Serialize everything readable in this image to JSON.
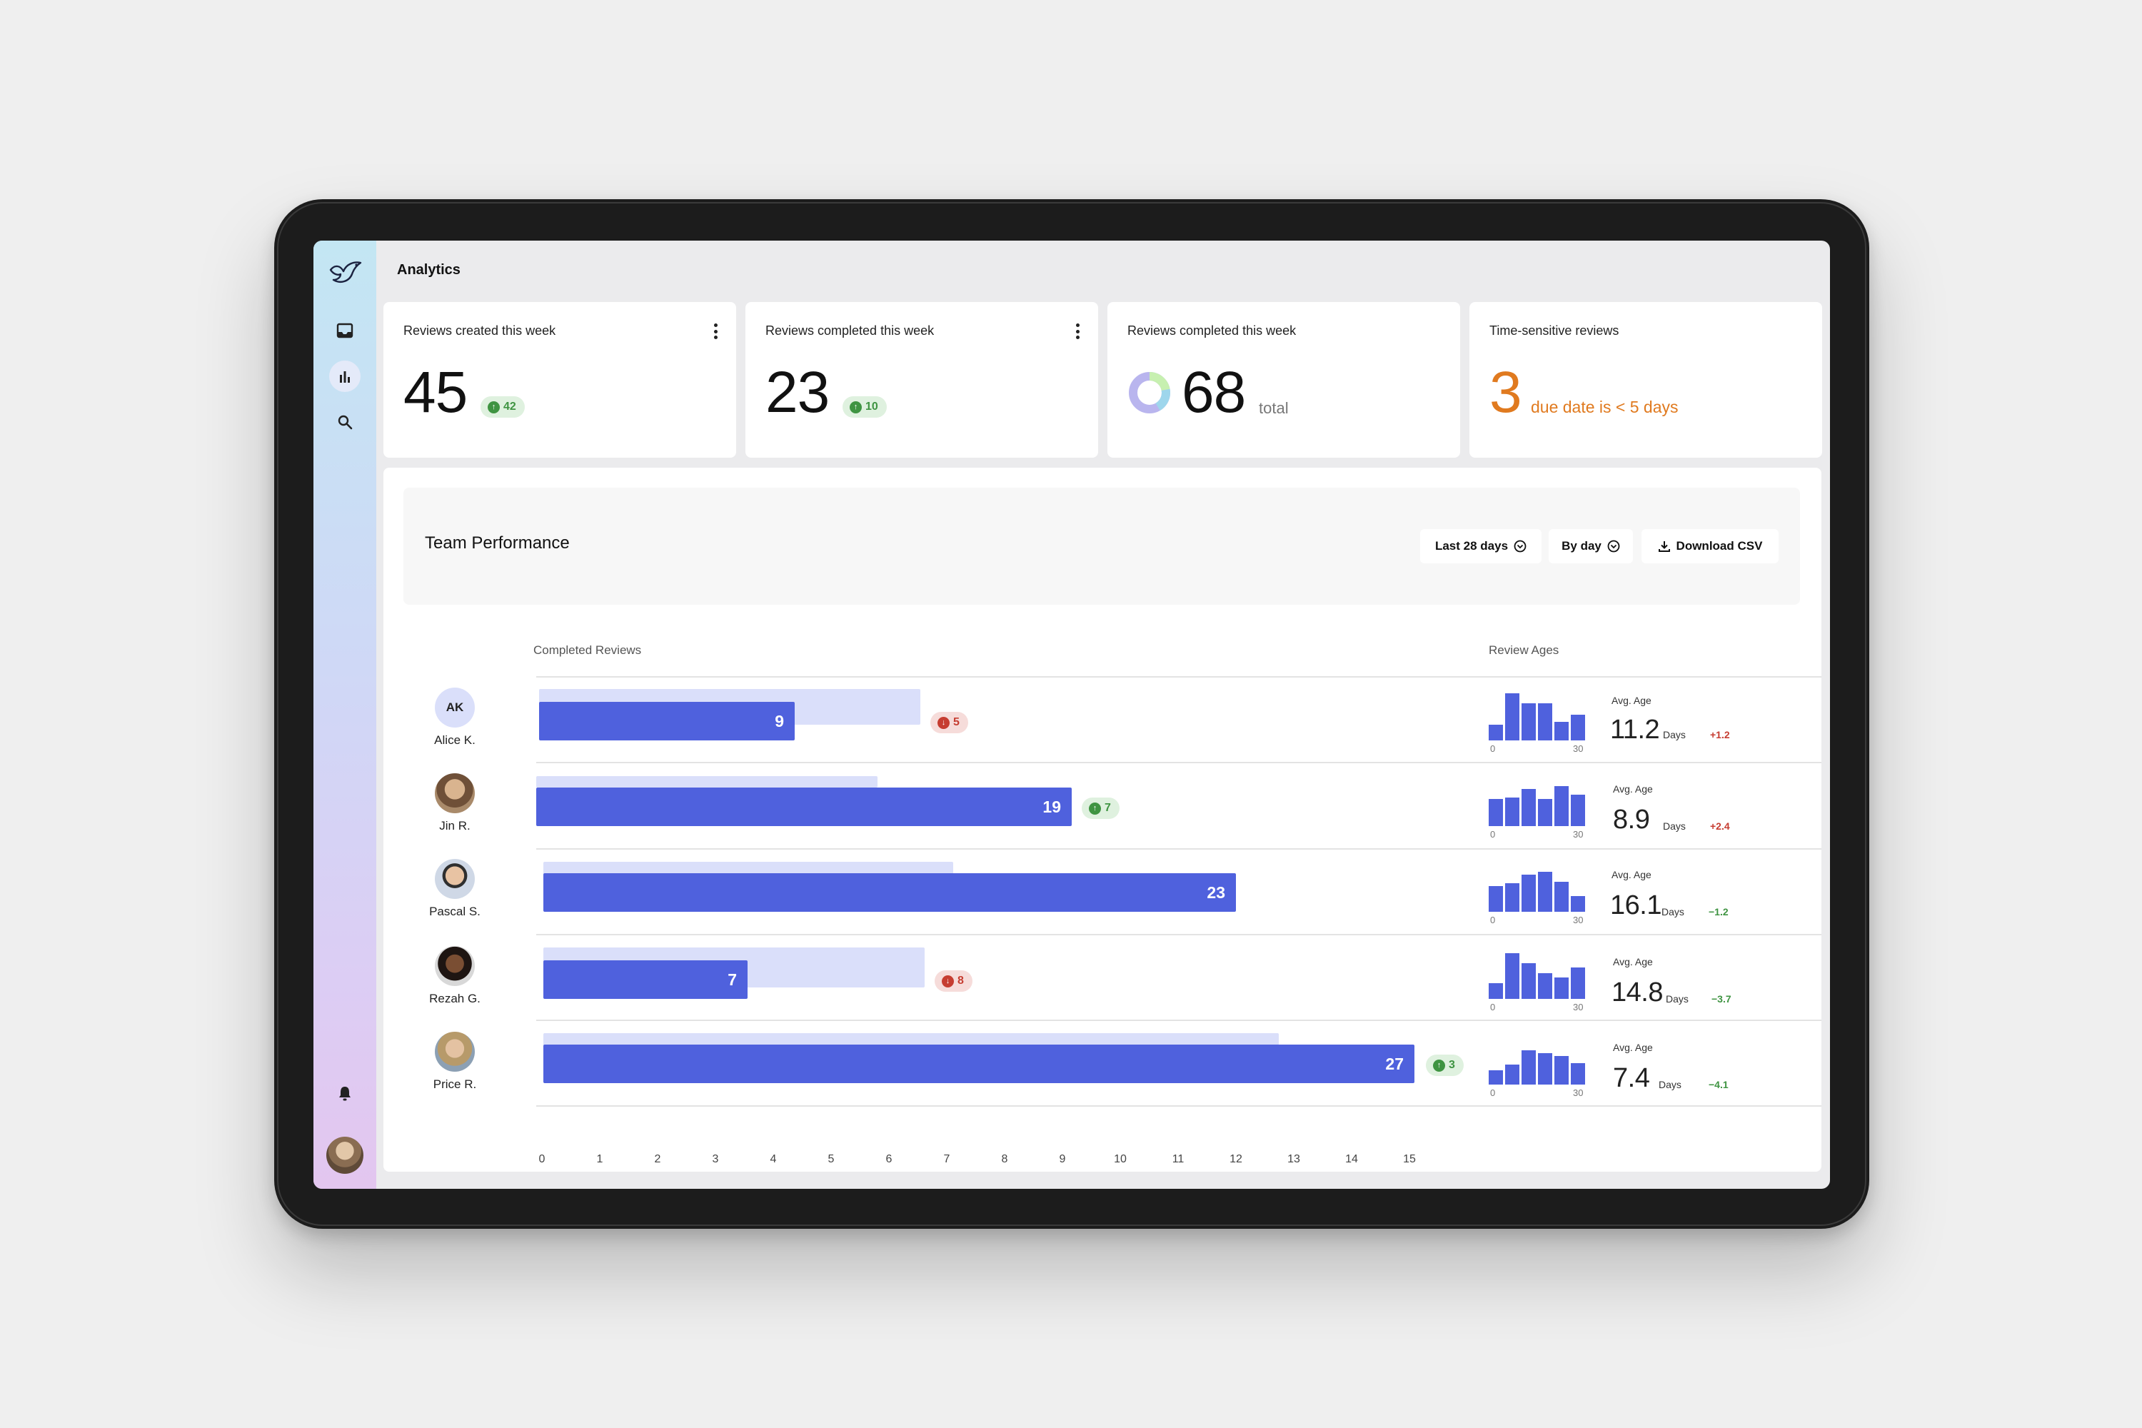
{
  "header": {
    "title": "Analytics"
  },
  "sidebar": {
    "items": [
      "bird-logo-icon",
      "inbox-icon",
      "bar-chart-icon",
      "search-icon",
      "bell-icon"
    ]
  },
  "cards": [
    {
      "title": "Reviews created this week",
      "value": "45",
      "delta": "42",
      "trend": "up"
    },
    {
      "title": "Reviews completed this week",
      "value": "23",
      "delta": "10",
      "trend": "up"
    },
    {
      "title": "Reviews completed this week",
      "value": "68",
      "suffix": "total"
    },
    {
      "title": "Time-sensitive reviews",
      "value": "3",
      "suffix": "due date is < 5 days"
    }
  ],
  "panel": {
    "title": "Team Performance",
    "range_label": "Last 28 days",
    "group_label": "By day",
    "download_label": "Download CSV",
    "completed_label": "Completed Reviews",
    "ages_label": "Review Ages"
  },
  "axis_ticks": [
    "0",
    "1",
    "2",
    "3",
    "4",
    "5",
    "6",
    "7",
    "8",
    "9",
    "10",
    "11",
    "12",
    "13",
    "14",
    "15"
  ],
  "people": [
    {
      "name": "Alice K.",
      "initials": "AK",
      "completed": "9",
      "delta": "5",
      "trend": "down",
      "avg_label": "Avg. Age",
      "avg": "11.2",
      "days": "Days",
      "age_delta": "+1.2",
      "hist_min": "0",
      "hist_max": "30"
    },
    {
      "name": "Jin R.",
      "initials": "",
      "completed": "19",
      "delta": "7",
      "trend": "up",
      "avg_label": "Avg. Age",
      "avg": "8.9",
      "days": "Days",
      "age_delta": "+2.4",
      "hist_min": "0",
      "hist_max": "30"
    },
    {
      "name": "Pascal S.",
      "initials": "",
      "completed": "23",
      "delta": "",
      "trend": "",
      "avg_label": "Avg. Age",
      "avg": "16.1",
      "days": "Days",
      "age_delta": "−1.2",
      "hist_min": "0",
      "hist_max": "30"
    },
    {
      "name": "Rezah G.",
      "initials": "",
      "completed": "7",
      "delta": "8",
      "trend": "down",
      "avg_label": "Avg. Age",
      "avg": "14.8",
      "days": "Days",
      "age_delta": "−3.7",
      "hist_min": "0",
      "hist_max": "30"
    },
    {
      "name": "Price R.",
      "initials": "",
      "completed": "27",
      "delta": "3",
      "trend": "up",
      "avg_label": "Avg. Age",
      "avg": "7.4",
      "days": "Days",
      "age_delta": "−4.1",
      "hist_min": "0",
      "hist_max": "30"
    }
  ],
  "colors": {
    "bar": "#4f61dd",
    "ghost": "#dadffa",
    "up": "#3f9442",
    "down": "#c63d31",
    "warning": "#e07a1f"
  }
}
